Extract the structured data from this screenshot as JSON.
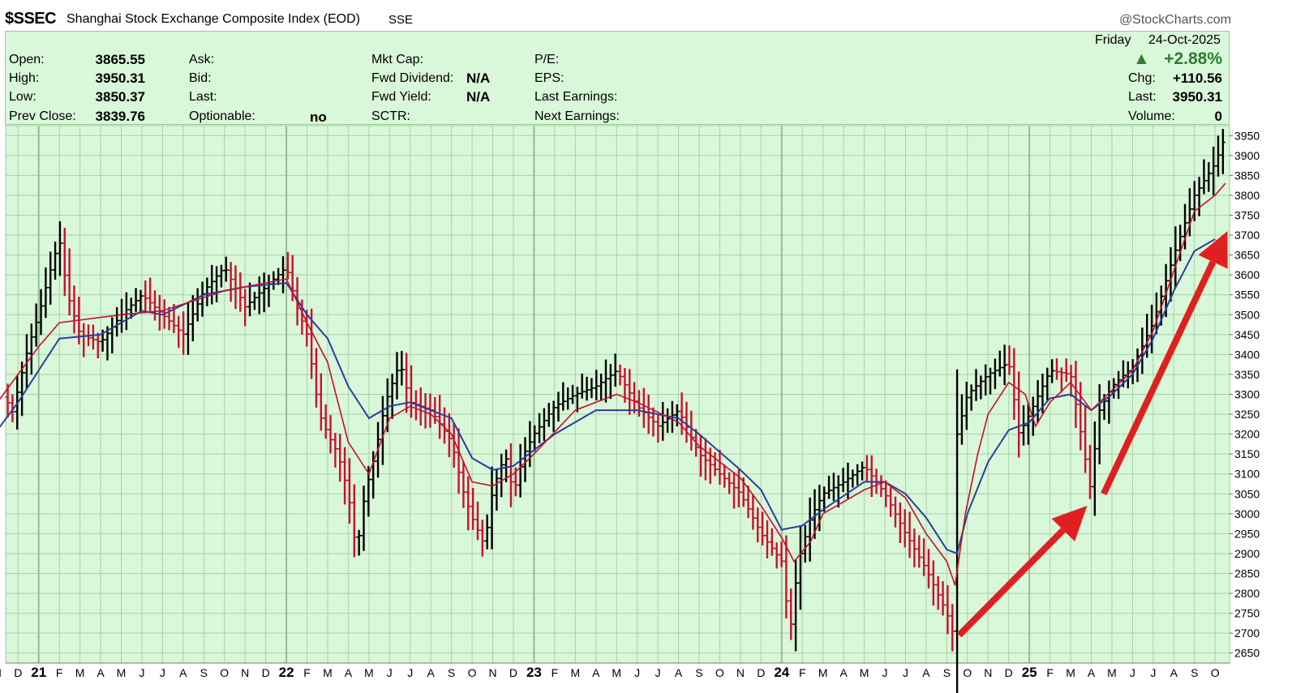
{
  "header": {
    "symbol": "$SSEC",
    "name": "Shanghai Stock Exchange Composite Index (EOD)",
    "exchange": "SSE",
    "brand": "@StockCharts.com"
  },
  "quote": {
    "open_label": "Open:",
    "open": "3865.55",
    "high_label": "High:",
    "high": "3950.31",
    "low_label": "Low:",
    "low": "3850.37",
    "prev_label": "Prev Close:",
    "prev": "3839.76",
    "ask_label": "Ask:",
    "bid_label": "Bid:",
    "last_label": "Last:",
    "optionable_label": "Optionable:",
    "optionable": "no",
    "mktcap_label": "Mkt Cap:",
    "fwd_div_label": "Fwd Dividend:",
    "fwd_div": "N/A",
    "fwd_yield_label": "Fwd Yield:",
    "fwd_yield": "N/A",
    "sctr_label": "SCTR:",
    "pe_label": "P/E:",
    "eps_label": "EPS:",
    "last_earn_label": "Last Earnings:",
    "next_earn_label": "Next Earnings:",
    "day": "Friday",
    "date": "24-Oct-2025",
    "pct_change": "+2.88%",
    "chg_label": "Chg:",
    "chg": "+110.56",
    "last2_label": "Last:",
    "last2": "3950.31",
    "vol_label": "Volume:",
    "volume": "0",
    "up_color": "#2e7d32"
  },
  "chart_data": {
    "type": "line",
    "title": "$SSEC Shanghai Stock Exchange Composite Index (EOD)",
    "ylim": [
      2625,
      3975
    ],
    "y_ticks": [
      2650,
      2700,
      2750,
      2800,
      2850,
      2900,
      2950,
      3000,
      3050,
      3100,
      3150,
      3200,
      3250,
      3300,
      3350,
      3400,
      3450,
      3500,
      3550,
      3600,
      3650,
      3700,
      3750,
      3800,
      3850,
      3900,
      3950
    ],
    "x_labels": [
      {
        "t": "N",
        "m": 0
      },
      {
        "t": "D",
        "m": 1
      },
      {
        "t": "21",
        "m": 2,
        "b": true
      },
      {
        "t": "F",
        "m": 3
      },
      {
        "t": "M",
        "m": 4
      },
      {
        "t": "A",
        "m": 5
      },
      {
        "t": "M",
        "m": 6
      },
      {
        "t": "J",
        "m": 7
      },
      {
        "t": "J",
        "m": 8
      },
      {
        "t": "A",
        "m": 9
      },
      {
        "t": "S",
        "m": 10
      },
      {
        "t": "O",
        "m": 11
      },
      {
        "t": "N",
        "m": 12
      },
      {
        "t": "D",
        "m": 13
      },
      {
        "t": "22",
        "m": 14,
        "b": true
      },
      {
        "t": "F",
        "m": 15
      },
      {
        "t": "M",
        "m": 16
      },
      {
        "t": "A",
        "m": 17
      },
      {
        "t": "M",
        "m": 18
      },
      {
        "t": "J",
        "m": 19
      },
      {
        "t": "J",
        "m": 20
      },
      {
        "t": "A",
        "m": 21
      },
      {
        "t": "S",
        "m": 22
      },
      {
        "t": "O",
        "m": 23
      },
      {
        "t": "N",
        "m": 24
      },
      {
        "t": "D",
        "m": 25
      },
      {
        "t": "23",
        "m": 26,
        "b": true
      },
      {
        "t": "F",
        "m": 27
      },
      {
        "t": "M",
        "m": 28
      },
      {
        "t": "A",
        "m": 29
      },
      {
        "t": "M",
        "m": 30
      },
      {
        "t": "J",
        "m": 31
      },
      {
        "t": "J",
        "m": 32
      },
      {
        "t": "A",
        "m": 33
      },
      {
        "t": "S",
        "m": 34
      },
      {
        "t": "O",
        "m": 35
      },
      {
        "t": "N",
        "m": 36
      },
      {
        "t": "D",
        "m": 37
      },
      {
        "t": "24",
        "m": 38,
        "b": true
      },
      {
        "t": "F",
        "m": 39
      },
      {
        "t": "M",
        "m": 40
      },
      {
        "t": "A",
        "m": 41
      },
      {
        "t": "M",
        "m": 42
      },
      {
        "t": "J",
        "m": 43
      },
      {
        "t": "J",
        "m": 44
      },
      {
        "t": "A",
        "m": 45
      },
      {
        "t": "S",
        "m": 46
      },
      {
        "t": "O",
        "m": 47
      },
      {
        "t": "N",
        "m": 48
      },
      {
        "t": "D",
        "m": 49
      },
      {
        "t": "25",
        "m": 50,
        "b": true
      },
      {
        "t": "F",
        "m": 51
      },
      {
        "t": "M",
        "m": 52
      },
      {
        "t": "A",
        "m": 53
      },
      {
        "t": "M",
        "m": 54
      },
      {
        "t": "J",
        "m": 55
      },
      {
        "t": "J",
        "m": 56
      },
      {
        "t": "A",
        "m": 57
      },
      {
        "t": "S",
        "m": 58
      },
      {
        "t": "O",
        "m": 59
      }
    ],
    "price_path": [
      [
        0,
        3350
      ],
      [
        0.7,
        3250
      ],
      [
        1.5,
        3420
      ],
      [
        2,
        3500
      ],
      [
        2.5,
        3600
      ],
      [
        3,
        3690
      ],
      [
        3.4,
        3550
      ],
      [
        4,
        3450
      ],
      [
        5,
        3430
      ],
      [
        6,
        3500
      ],
      [
        7,
        3550
      ],
      [
        8,
        3500
      ],
      [
        9,
        3450
      ],
      [
        10,
        3560
      ],
      [
        11,
        3620
      ],
      [
        12,
        3520
      ],
      [
        13,
        3570
      ],
      [
        14,
        3620
      ],
      [
        14.5,
        3520
      ],
      [
        15,
        3450
      ],
      [
        15.6,
        3250
      ],
      [
        16,
        3200
      ],
      [
        16.5,
        3150
      ],
      [
        17,
        3050
      ],
      [
        17.4,
        2900
      ],
      [
        17.8,
        3050
      ],
      [
        18.3,
        3150
      ],
      [
        18.8,
        3280
      ],
      [
        19.5,
        3380
      ],
      [
        20,
        3280
      ],
      [
        21,
        3260
      ],
      [
        22,
        3180
      ],
      [
        22.6,
        3050
      ],
      [
        23,
        2990
      ],
      [
        23.6,
        2920
      ],
      [
        24,
        3060
      ],
      [
        24.6,
        3150
      ],
      [
        25,
        3050
      ],
      [
        25.5,
        3150
      ],
      [
        26,
        3200
      ],
      [
        27,
        3270
      ],
      [
        28,
        3300
      ],
      [
        29,
        3320
      ],
      [
        30,
        3360
      ],
      [
        31,
        3270
      ],
      [
        32,
        3220
      ],
      [
        33,
        3260
      ],
      [
        34,
        3150
      ],
      [
        35,
        3100
      ],
      [
        36,
        3050
      ],
      [
        37,
        2950
      ],
      [
        38,
        2880
      ],
      [
        38.4,
        2700
      ],
      [
        38.8,
        2880
      ],
      [
        39.4,
        2990
      ],
      [
        40,
        3050
      ],
      [
        41,
        3080
      ],
      [
        42,
        3120
      ],
      [
        43,
        3050
      ],
      [
        44,
        2950
      ],
      [
        45,
        2860
      ],
      [
        46,
        2750
      ],
      [
        46.3,
        2700
      ],
      [
        46.5,
        3200
      ],
      [
        47,
        3300
      ],
      [
        48,
        3350
      ],
      [
        49,
        3380
      ],
      [
        49.5,
        3200
      ],
      [
        50,
        3250
      ],
      [
        51,
        3360
      ],
      [
        52,
        3350
      ],
      [
        53,
        3050
      ],
      [
        53.3,
        3250
      ],
      [
        54,
        3320
      ],
      [
        55,
        3370
      ],
      [
        56,
        3480
      ],
      [
        57,
        3650
      ],
      [
        58,
        3800
      ],
      [
        59,
        3880
      ],
      [
        59.5,
        3950
      ]
    ],
    "ma_fast_path": [
      [
        0,
        3280
      ],
      [
        2,
        3420
      ],
      [
        3,
        3480
      ],
      [
        6,
        3500
      ],
      [
        8,
        3510
      ],
      [
        11,
        3560
      ],
      [
        13,
        3580
      ],
      [
        14,
        3590
      ],
      [
        15,
        3480
      ],
      [
        16,
        3380
      ],
      [
        17,
        3180
      ],
      [
        18,
        3100
      ],
      [
        19,
        3240
      ],
      [
        20,
        3270
      ],
      [
        21,
        3250
      ],
      [
        22,
        3200
      ],
      [
        23,
        3080
      ],
      [
        24,
        3070
      ],
      [
        25,
        3100
      ],
      [
        26,
        3150
      ],
      [
        28,
        3260
      ],
      [
        30,
        3300
      ],
      [
        31,
        3280
      ],
      [
        33,
        3230
      ],
      [
        34,
        3170
      ],
      [
        36,
        3090
      ],
      [
        37,
        3020
      ],
      [
        38,
        2940
      ],
      [
        38.6,
        2880
      ],
      [
        39.4,
        2930
      ],
      [
        40,
        3000
      ],
      [
        42,
        3060
      ],
      [
        43,
        3080
      ],
      [
        44,
        3040
      ],
      [
        45,
        2950
      ],
      [
        46,
        2880
      ],
      [
        46.4,
        2820
      ],
      [
        46.9,
        3000
      ],
      [
        47.5,
        3150
      ],
      [
        48,
        3250
      ],
      [
        49,
        3330
      ],
      [
        49.8,
        3300
      ],
      [
        50.3,
        3220
      ],
      [
        51,
        3280
      ],
      [
        52,
        3330
      ],
      [
        53,
        3260
      ],
      [
        54,
        3310
      ],
      [
        55,
        3360
      ],
      [
        56,
        3460
      ],
      [
        57,
        3610
      ],
      [
        58,
        3760
      ],
      [
        59,
        3800
      ],
      [
        59.5,
        3830
      ]
    ],
    "ma_slow_path": [
      [
        0,
        3210
      ],
      [
        1,
        3280
      ],
      [
        2,
        3360
      ],
      [
        3,
        3440
      ],
      [
        5,
        3450
      ],
      [
        7,
        3510
      ],
      [
        8,
        3500
      ],
      [
        10,
        3550
      ],
      [
        12,
        3570
      ],
      [
        14,
        3580
      ],
      [
        15,
        3500
      ],
      [
        16,
        3440
      ],
      [
        17,
        3320
      ],
      [
        18,
        3240
      ],
      [
        19,
        3270
      ],
      [
        20,
        3280
      ],
      [
        22,
        3240
      ],
      [
        23,
        3140
      ],
      [
        24,
        3110
      ],
      [
        25,
        3120
      ],
      [
        27,
        3200
      ],
      [
        29,
        3260
      ],
      [
        31,
        3260
      ],
      [
        33,
        3240
      ],
      [
        34,
        3200
      ],
      [
        36,
        3110
      ],
      [
        37,
        3060
      ],
      [
        38,
        2960
      ],
      [
        39,
        2970
      ],
      [
        40,
        3010
      ],
      [
        42,
        3080
      ],
      [
        43,
        3080
      ],
      [
        44,
        3050
      ],
      [
        45,
        2990
      ],
      [
        46,
        2910
      ],
      [
        46.5,
        2900
      ],
      [
        47,
        3000
      ],
      [
        48,
        3130
      ],
      [
        49,
        3210
      ],
      [
        50,
        3230
      ],
      [
        51,
        3290
      ],
      [
        52,
        3300
      ],
      [
        53,
        3260
      ],
      [
        54,
        3300
      ],
      [
        55,
        3350
      ],
      [
        56,
        3440
      ],
      [
        57,
        3560
      ],
      [
        58,
        3660
      ],
      [
        59,
        3690
      ]
    ],
    "arrows": [
      {
        "from": [
          46.6,
          2695
        ],
        "to": [
          52.8,
          3020
        ]
      },
      {
        "from": [
          53.6,
          3050
        ],
        "to": [
          59.6,
          3710
        ]
      }
    ],
    "colors": {
      "up": "#000000",
      "down": "#c8102e",
      "ma_fast": "#c8102e",
      "ma_slow": "#2e3d9e",
      "arrow": "#e02020",
      "plot_bg": "#d9f7d9",
      "grid": "#a7d2a7",
      "year_line": "#94bd94"
    }
  }
}
